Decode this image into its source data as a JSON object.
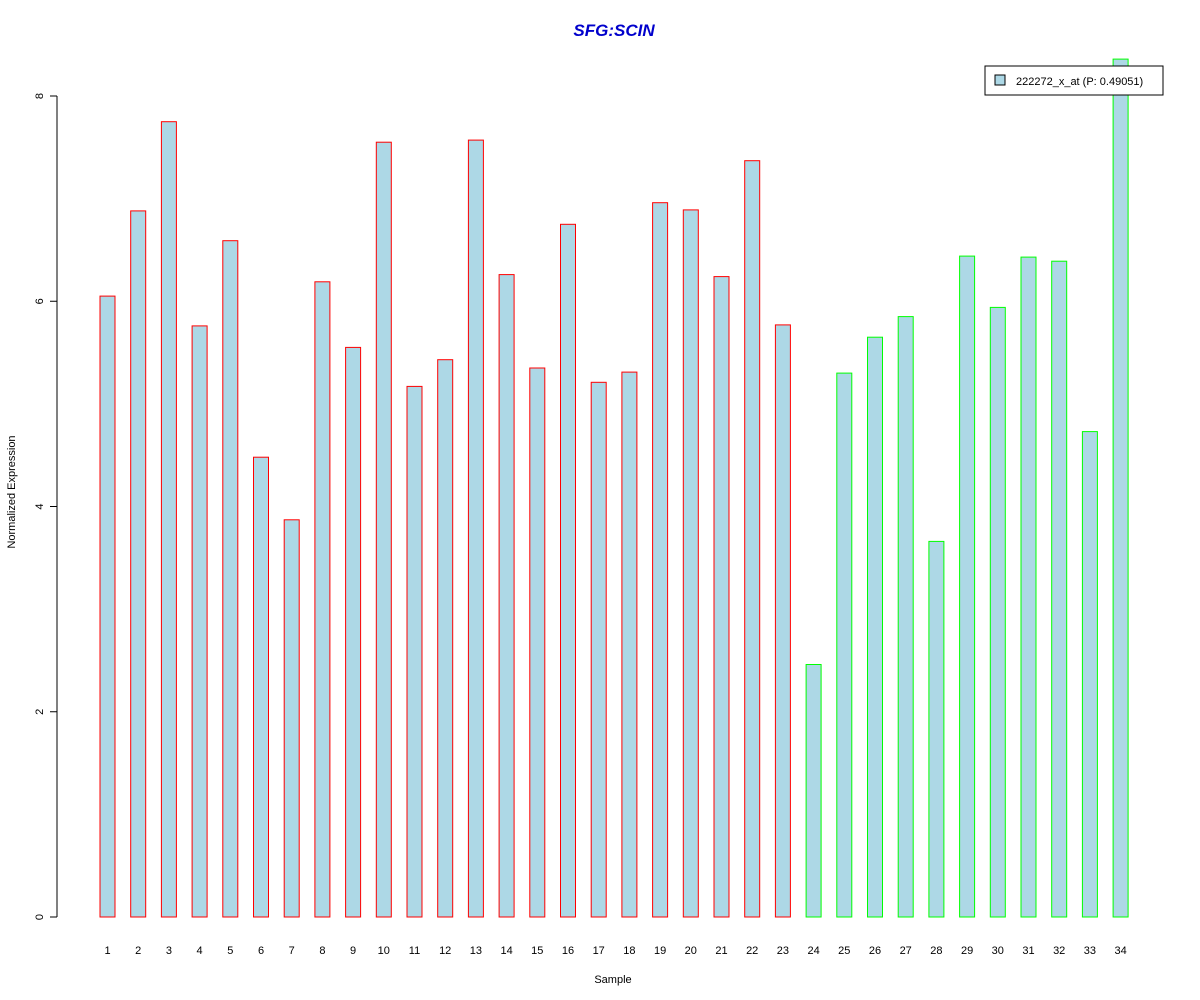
{
  "chart_data": {
    "type": "bar",
    "title": "SFG:SCIN",
    "xlabel": "Sample",
    "ylabel": "Normalized Expression",
    "ylim": [
      0,
      8
    ],
    "yticks": [
      "0",
      "2",
      "4",
      "6",
      "8"
    ],
    "categories": [
      "1",
      "2",
      "3",
      "4",
      "5",
      "6",
      "7",
      "8",
      "9",
      "10",
      "11",
      "12",
      "13",
      "14",
      "15",
      "16",
      "17",
      "18",
      "19",
      "20",
      "21",
      "22",
      "23",
      "24",
      "25",
      "26",
      "27",
      "28",
      "29",
      "30",
      "31",
      "32",
      "33",
      "34"
    ],
    "values": [
      6.05,
      6.88,
      7.75,
      5.76,
      6.59,
      4.48,
      3.87,
      6.19,
      5.55,
      7.55,
      5.17,
      5.43,
      7.57,
      6.26,
      5.35,
      6.75,
      5.21,
      5.31,
      6.96,
      6.89,
      6.24,
      7.37,
      5.77,
      2.46,
      5.3,
      5.65,
      5.85,
      3.66,
      6.44,
      5.94,
      6.43,
      6.39,
      4.73,
      8.36
    ],
    "series": [
      {
        "name": "222272_x_at (P: 0.49051)"
      }
    ],
    "legend_position": "top-right",
    "grid": false,
    "colors": {
      "bar_fill": "#add8e6",
      "group1_border": "#ff0000",
      "group2_border": "#00ff00",
      "group1_range": [
        1,
        23
      ],
      "group2_range": [
        24,
        34
      ],
      "title": "#0000cc"
    }
  }
}
